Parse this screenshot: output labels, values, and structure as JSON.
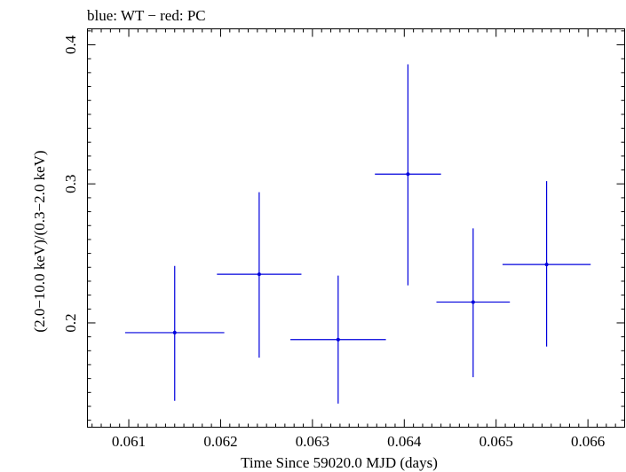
{
  "chart_data": {
    "type": "scatter",
    "title": "blue: WT − red: PC",
    "xlabel": "Time Since 59020.0 MJD (days)",
    "ylabel": "(2.0−10.0 keV)/(0.3−2.0 keV)",
    "xlim": [
      0.06055,
      0.0664
    ],
    "ylim": [
      0.125,
      0.4115
    ],
    "x_ticks": [
      0.061,
      0.062,
      0.063,
      0.064,
      0.065,
      0.066
    ],
    "x_tick_labels": [
      "0.061",
      "0.062",
      "0.063",
      "0.064",
      "0.065",
      "0.066"
    ],
    "y_ticks": [
      0.2,
      0.3,
      0.4
    ],
    "y_tick_labels": [
      "0.2",
      "0.3",
      "0.4"
    ],
    "series": [
      {
        "name": "WT",
        "color": "#0000dd",
        "points": [
          {
            "x": 0.0615,
            "xerr": 0.00054,
            "y": 0.193,
            "yerr_low": 0.049,
            "yerr_high": 0.048
          },
          {
            "x": 0.06242,
            "xerr": 0.00046,
            "y": 0.235,
            "yerr_low": 0.06,
            "yerr_high": 0.059
          },
          {
            "x": 0.06328,
            "xerr": 0.00052,
            "y": 0.188,
            "yerr_low": 0.046,
            "yerr_high": 0.046
          },
          {
            "x": 0.06404,
            "xerr": 0.00036,
            "y": 0.307,
            "yerr_low": 0.08,
            "yerr_high": 0.079
          },
          {
            "x": 0.06475,
            "xerr": 0.0004,
            "y": 0.215,
            "yerr_low": 0.054,
            "yerr_high": 0.053
          },
          {
            "x": 0.06555,
            "xerr": 0.00048,
            "y": 0.242,
            "yerr_low": 0.059,
            "yerr_high": 0.06
          }
        ]
      }
    ]
  }
}
